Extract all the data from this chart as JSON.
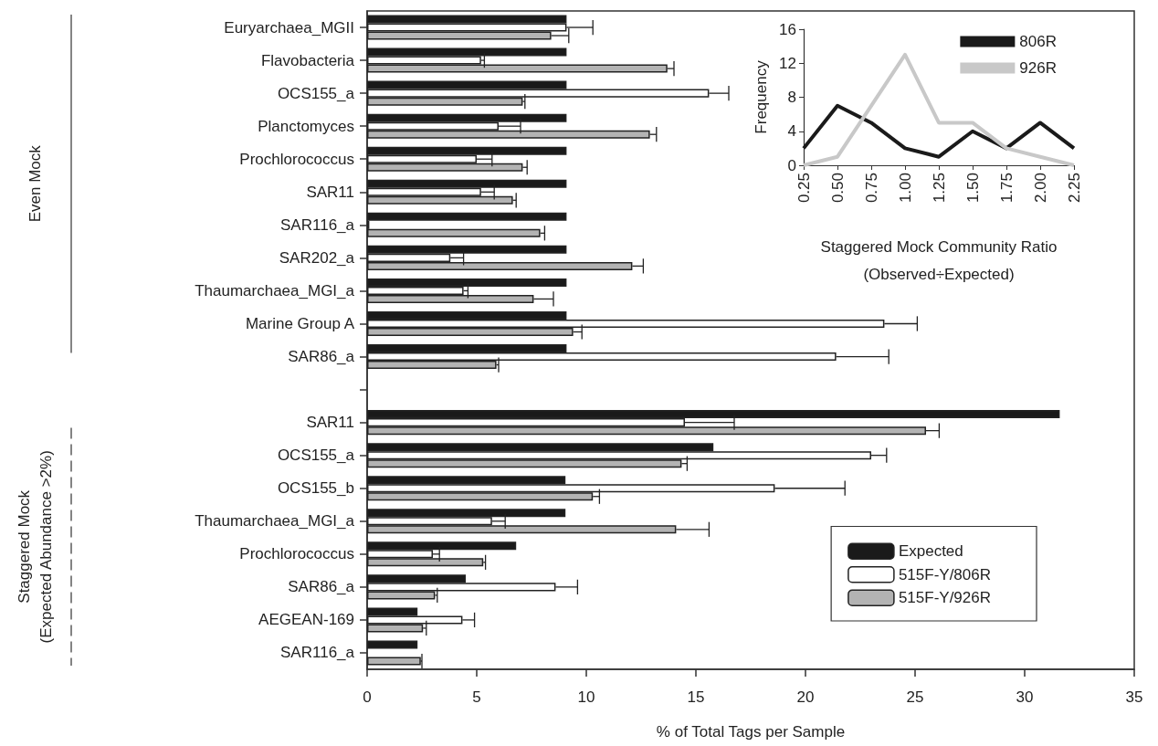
{
  "chart_data": [
    {
      "type": "bar",
      "orientation": "horizontal",
      "xlabel": "% of Total Tags per Sample",
      "categories": [
        "Euryarchaea_MGII",
        "Flavobacteria",
        "OCS155_a",
        "Planctomyces",
        "Prochlorococcus",
        "SAR11",
        "SAR116_a",
        "SAR202_a",
        "Thaumarchaea_MGI_a",
        "Marine Group A",
        "SAR86_a",
        null,
        "SAR11",
        "OCS155_a",
        "OCS155_b",
        "Thaumarchaea_MGI_a",
        "Prochlorococcus",
        "SAR86_a",
        "AEGEAN-169",
        "SAR116_a"
      ],
      "series": [
        {
          "name": "Expected",
          "color": "#1a1a1a",
          "values": [
            9.1,
            9.1,
            9.1,
            9.1,
            9.1,
            9.1,
            9.1,
            9.1,
            9.1,
            9.1,
            9.1,
            null,
            31.6,
            15.8,
            9.05,
            9.05,
            6.8,
            4.5,
            2.3,
            2.3
          ]
        },
        {
          "name": "515F-Y/806R",
          "color": "#ffffff",
          "values": [
            9.1,
            5.2,
            15.6,
            6.0,
            5.0,
            5.2,
            0.1,
            3.8,
            4.4,
            23.6,
            21.4,
            null,
            14.5,
            23.0,
            18.6,
            5.7,
            3.0,
            8.6,
            4.35,
            null
          ],
          "errors": [
            [
              9.1,
              10.3
            ],
            [
              5.2,
              5.35
            ],
            [
              15.6,
              16.5
            ],
            [
              6.0,
              7.0
            ],
            [
              5.0,
              5.7
            ],
            [
              5.2,
              5.8
            ],
            null,
            [
              3.8,
              4.4
            ],
            [
              4.4,
              4.6
            ],
            [
              23.6,
              25.1
            ],
            [
              21.4,
              23.8
            ],
            null,
            [
              14.5,
              16.75
            ],
            [
              23.0,
              23.7
            ],
            [
              18.6,
              21.8
            ],
            [
              5.7,
              6.3
            ],
            [
              3.0,
              3.3
            ],
            [
              8.6,
              9.6
            ],
            [
              4.35,
              4.9
            ],
            null
          ]
        },
        {
          "name": "515F-Y/926R",
          "color": "#b3b3b3",
          "values": [
            8.4,
            13.7,
            7.1,
            12.9,
            7.1,
            6.65,
            7.9,
            12.1,
            7.6,
            9.4,
            5.9,
            null,
            25.5,
            14.35,
            10.3,
            14.1,
            5.3,
            3.1,
            2.55,
            2.45
          ],
          "errors": [
            [
              8.4,
              9.2
            ],
            [
              13.7,
              14.0
            ],
            [
              7.1,
              7.2
            ],
            [
              12.9,
              13.2
            ],
            [
              7.1,
              7.3
            ],
            [
              6.65,
              6.8
            ],
            [
              7.9,
              8.1
            ],
            [
              12.1,
              12.6
            ],
            [
              7.6,
              8.5
            ],
            [
              9.4,
              9.8
            ],
            [
              5.9,
              6.0
            ],
            null,
            [
              25.5,
              26.1
            ],
            [
              14.35,
              14.6
            ],
            [
              10.3,
              10.6
            ],
            [
              14.1,
              15.6
            ],
            [
              5.3,
              5.4
            ],
            [
              3.1,
              3.2
            ],
            [
              2.55,
              2.7
            ],
            [
              2.45,
              2.5
            ]
          ]
        }
      ],
      "xlim": [
        0,
        35
      ],
      "xticks": [
        0,
        5,
        10,
        15,
        20,
        25,
        30,
        35
      ],
      "legend": "bottom right",
      "annotations": [
        "Even Mock",
        "Staggered Mock\n(Expected Abundance >2%)"
      ]
    },
    {
      "type": "line",
      "xlabel": "Staggered Mock Community Ratio\n(Observed÷Expected)",
      "ylabel": "Frequency",
      "categories": [
        "0.25",
        "0.50",
        "0.75",
        "1.00",
        "1.25",
        "1.50",
        "1.75",
        "2.00",
        "2.25"
      ],
      "series": [
        {
          "name": "806R",
          "color": "#1a1a1a",
          "values": [
            2,
            7,
            5,
            2,
            1,
            4,
            2,
            5,
            2
          ]
        },
        {
          "name": "926R",
          "color": "#c8c8c8",
          "values": [
            0,
            1,
            7,
            13,
            5,
            5,
            2,
            1,
            0
          ]
        }
      ],
      "ylim": [
        0,
        16
      ],
      "yticks": [
        0,
        4,
        8,
        12,
        16
      ],
      "legend": "top right",
      "marker": "none"
    }
  ]
}
